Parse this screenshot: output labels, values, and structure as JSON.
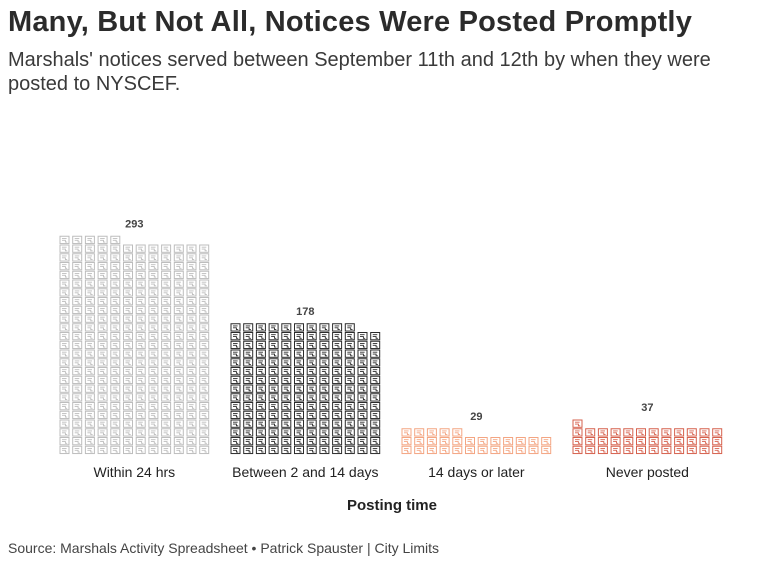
{
  "title": "Many, But Not All, Notices Were Posted Promptly",
  "subtitle": "Marshals' notices served between September 11th and 12th by when they were posted to NYSCEF.",
  "source": "Source: Marshals Activity Spreadsheet • Patrick Spauster | City Limits",
  "chart_data": {
    "type": "bar",
    "style": "pictogram",
    "unit_icon": "document-icon",
    "units_per_icon": 1,
    "icons_per_row": 12,
    "categories": [
      "Within 24 hrs",
      "Between 2 and 14 days",
      "14 days or later",
      "Never posted"
    ],
    "values": [
      293,
      178,
      29,
      37
    ],
    "colors": [
      "#bdbdbd",
      "#2b2b2b",
      "#f4a582",
      "#d6604d"
    ],
    "xlabel": "Posting time",
    "ylabel": "",
    "grid": false,
    "legend": "none"
  }
}
